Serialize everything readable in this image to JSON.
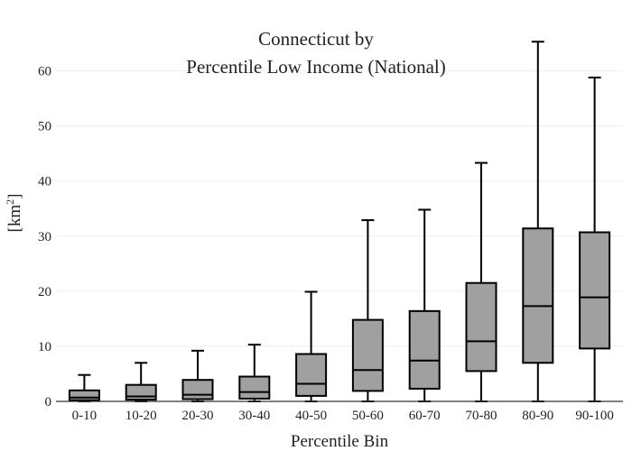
{
  "chart_data": {
    "type": "box",
    "title_line1": "Connecticut  by",
    "title_line2": "Percentile Low Income (National)",
    "xlabel": "Percentile Bin",
    "ylabel_base": "[km",
    "ylabel_sup": "2",
    "ylabel_close": "]",
    "ylim": [
      0,
      65.5
    ],
    "yticks": [
      0,
      10,
      20,
      30,
      40,
      50,
      60
    ],
    "grid": true,
    "categories": [
      "0-10",
      "10-20",
      "20-30",
      "30-40",
      "40-50",
      "50-60",
      "60-70",
      "70-80",
      "80-90",
      "90-100"
    ],
    "boxes": [
      {
        "min": 0,
        "q1": 0.2,
        "median": 0.7,
        "q3": 2.0,
        "max": 4.8
      },
      {
        "min": 0,
        "q1": 0.3,
        "median": 0.9,
        "q3": 3.0,
        "max": 7.0
      },
      {
        "min": 0,
        "q1": 0.4,
        "median": 1.2,
        "q3": 3.9,
        "max": 9.2
      },
      {
        "min": 0,
        "q1": 0.5,
        "median": 1.7,
        "q3": 4.5,
        "max": 10.3
      },
      {
        "min": 0,
        "q1": 1.0,
        "median": 3.2,
        "q3": 8.6,
        "max": 19.9
      },
      {
        "min": 0,
        "q1": 1.9,
        "median": 5.7,
        "q3": 14.8,
        "max": 32.9
      },
      {
        "min": 0,
        "q1": 2.3,
        "median": 7.4,
        "q3": 16.4,
        "max": 34.8
      },
      {
        "min": 0,
        "q1": 5.5,
        "median": 10.9,
        "q3": 21.5,
        "max": 43.3
      },
      {
        "min": 0,
        "q1": 7.0,
        "median": 17.3,
        "q3": 31.4,
        "max": 65.3
      },
      {
        "min": 0,
        "q1": 9.6,
        "median": 18.9,
        "q3": 30.7,
        "max": 58.8
      }
    ],
    "colors": {
      "box_fill": "#a0a0a0",
      "box_stroke": "#000000",
      "grid": "#eeeeee"
    }
  }
}
